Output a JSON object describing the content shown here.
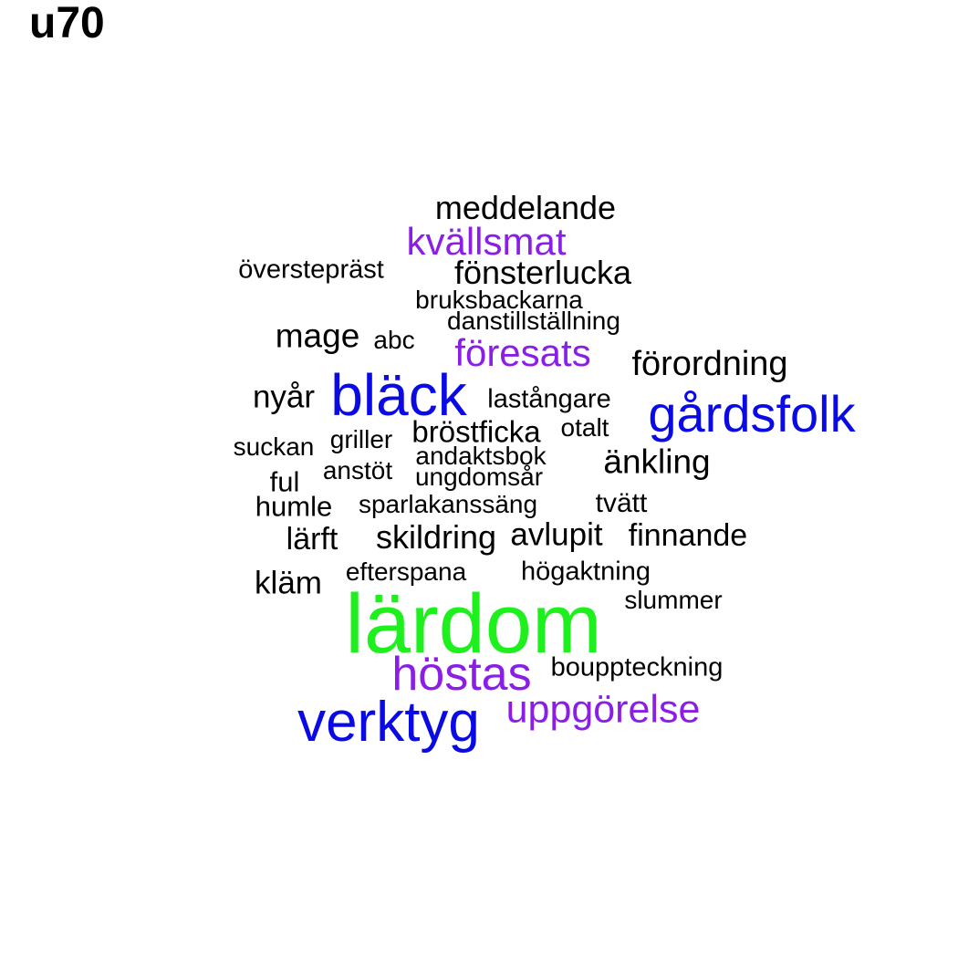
{
  "title": "u70",
  "colors": {
    "black": "#000000",
    "purple": "#8a1ee6",
    "blue": "#0a0ae6",
    "green": "#1ef01e"
  },
  "words": [
    {
      "text": "meddelande",
      "color": "#000000"
    },
    {
      "text": "kvällsmat",
      "color": "#8a1ee6"
    },
    {
      "text": "överstepräst",
      "color": "#000000"
    },
    {
      "text": "fönsterlucka",
      "color": "#000000"
    },
    {
      "text": "bruksbackarna",
      "color": "#000000"
    },
    {
      "text": "danstillställning",
      "color": "#000000"
    },
    {
      "text": "mage",
      "color": "#000000"
    },
    {
      "text": "abc",
      "color": "#000000"
    },
    {
      "text": "föresats",
      "color": "#8a1ee6"
    },
    {
      "text": "förordning",
      "color": "#000000"
    },
    {
      "text": "nyår",
      "color": "#000000"
    },
    {
      "text": "bläck",
      "color": "#0a0ae6"
    },
    {
      "text": "lastångare",
      "color": "#000000"
    },
    {
      "text": "gårdsfolk",
      "color": "#0a0ae6"
    },
    {
      "text": "bröstficka",
      "color": "#000000"
    },
    {
      "text": "otalt",
      "color": "#000000"
    },
    {
      "text": "suckan",
      "color": "#000000"
    },
    {
      "text": "griller",
      "color": "#000000"
    },
    {
      "text": "andaktsbok",
      "color": "#000000"
    },
    {
      "text": "änkling",
      "color": "#000000"
    },
    {
      "text": "anstöt",
      "color": "#000000"
    },
    {
      "text": "ungdomsår",
      "color": "#000000"
    },
    {
      "text": "ful",
      "color": "#000000"
    },
    {
      "text": "humle",
      "color": "#000000"
    },
    {
      "text": "sparlakanssäng",
      "color": "#000000"
    },
    {
      "text": "tvätt",
      "color": "#000000"
    },
    {
      "text": "lärft",
      "color": "#000000"
    },
    {
      "text": "skildring",
      "color": "#000000"
    },
    {
      "text": "avlupit",
      "color": "#000000"
    },
    {
      "text": "finnande",
      "color": "#000000"
    },
    {
      "text": "kläm",
      "color": "#000000"
    },
    {
      "text": "efterspana",
      "color": "#000000"
    },
    {
      "text": "högaktning",
      "color": "#000000"
    },
    {
      "text": "slummer",
      "color": "#000000"
    },
    {
      "text": "lärdom",
      "color": "#1ef01e"
    },
    {
      "text": "höstas",
      "color": "#8a1ee6"
    },
    {
      "text": "bouppteckning",
      "color": "#000000"
    },
    {
      "text": "verktyg",
      "color": "#0a0ae6"
    },
    {
      "text": "uppgörelse",
      "color": "#8a1ee6"
    }
  ]
}
